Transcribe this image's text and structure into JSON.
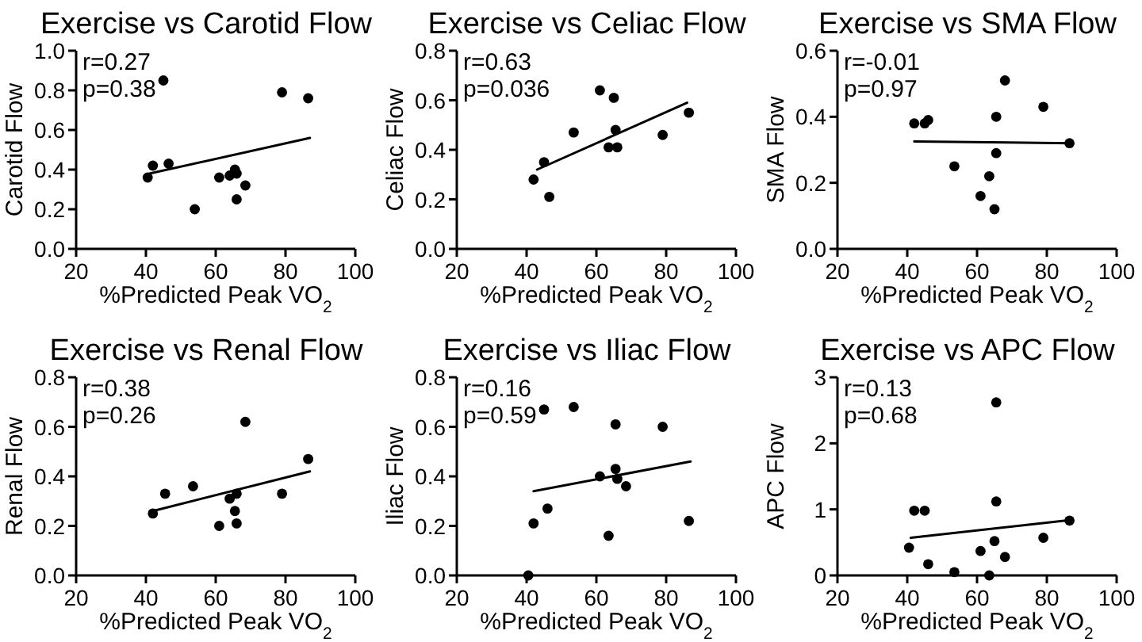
{
  "chart_data": [
    {
      "type": "scatter",
      "title": "Exercise vs Carotid Flow",
      "xlabel": "%Predicted Peak VO$_{2}$",
      "ylabel": "Carotid Flow",
      "annotations": [
        "r=0.27",
        "p=0.38"
      ],
      "marker": "circle",
      "xlim": [
        20,
        100
      ],
      "xticks": [
        20,
        40,
        60,
        80,
        100
      ],
      "ylim": [
        0,
        1
      ],
      "yticks": [
        {
          "value": 0,
          "label": "0.0"
        },
        {
          "value": 0.2,
          "label": "0.2"
        },
        {
          "value": 0.4,
          "label": "0.4"
        },
        {
          "value": 0.6,
          "label": "0.6"
        },
        {
          "value": 0.8,
          "label": "0.8"
        },
        {
          "value": 1,
          "label": "1.0"
        }
      ],
      "series": [
        {
          "color": "#000000",
          "x": [
            40.5,
            42,
            45,
            46.5,
            54,
            61,
            64,
            65.5,
            66,
            66,
            68.5,
            79,
            86.5
          ],
          "values": [
            0.36,
            0.42,
            0.85,
            0.43,
            0.2,
            0.36,
            0.37,
            0.4,
            0.38,
            0.25,
            0.32,
            0.79,
            0.76
          ]
        },
        {
          "type": "line",
          "marker": "none",
          "color": "#000000",
          "x": [
            41,
            87
          ],
          "values": [
            0.38,
            0.56
          ]
        }
      ]
    },
    {
      "type": "scatter",
      "title": "Exercise vs Celiac Flow",
      "xlabel": "%Predicted Peak VO$_{2}$",
      "ylabel": "Celiac Flow",
      "annotations": [
        "r=0.63",
        "p=0.036"
      ],
      "marker": "circle",
      "xlim": [
        20,
        100
      ],
      "xticks": [
        20,
        40,
        60,
        80,
        100
      ],
      "ylim": [
        0,
        0.8
      ],
      "yticks": [
        {
          "value": 0,
          "label": "0.0"
        },
        {
          "value": 0.2,
          "label": "0.2"
        },
        {
          "value": 0.4,
          "label": "0.4"
        },
        {
          "value": 0.6,
          "label": "0.6"
        },
        {
          "value": 0.8,
          "label": "0.8"
        }
      ],
      "series": [
        {
          "color": "#000000",
          "x": [
            42,
            45,
            46.5,
            53.5,
            61,
            63.5,
            65,
            65.5,
            66,
            79,
            86.5
          ],
          "values": [
            0.28,
            0.35,
            0.21,
            0.47,
            0.64,
            0.41,
            0.61,
            0.48,
            0.41,
            0.46,
            0.55
          ]
        },
        {
          "type": "line",
          "marker": "none",
          "color": "#000000",
          "x": [
            43,
            86
          ],
          "values": [
            0.32,
            0.59
          ]
        }
      ]
    },
    {
      "type": "scatter",
      "title": "Exercise vs SMA Flow",
      "xlabel": "%Predicted Peak VO$_{2}$",
      "ylabel": "SMA Flow",
      "annotations": [
        "r=-0.01",
        "p=0.97"
      ],
      "marker": "circle",
      "xlim": [
        20,
        100
      ],
      "xticks": [
        20,
        40,
        60,
        80,
        100
      ],
      "ylim": [
        0,
        0.6
      ],
      "yticks": [
        {
          "value": 0,
          "label": "0.0"
        },
        {
          "value": 0.2,
          "label": "0.2"
        },
        {
          "value": 0.4,
          "label": "0.4"
        },
        {
          "value": 0.6,
          "label": "0.6"
        }
      ],
      "series": [
        {
          "color": "#000000",
          "x": [
            42,
            45,
            46,
            53.5,
            61,
            63.5,
            65,
            65.5,
            65.5,
            68,
            79,
            86.5
          ],
          "values": [
            0.38,
            0.38,
            0.39,
            0.25,
            0.16,
            0.22,
            0.12,
            0.29,
            0.4,
            0.51,
            0.43,
            0.32
          ]
        },
        {
          "type": "line",
          "marker": "none",
          "color": "#000000",
          "x": [
            42,
            87
          ],
          "values": [
            0.325,
            0.32
          ]
        }
      ]
    },
    {
      "type": "scatter",
      "title": "Exercise vs Renal Flow",
      "xlabel": "%Predicted Peak VO$_{2}$",
      "ylabel": "Renal Flow",
      "annotations": [
        "r=0.38",
        "p=0.26"
      ],
      "marker": "circle",
      "xlim": [
        20,
        100
      ],
      "xticks": [
        20,
        40,
        60,
        80,
        100
      ],
      "ylim": [
        0,
        0.8
      ],
      "yticks": [
        {
          "value": 0,
          "label": "0.0"
        },
        {
          "value": 0.2,
          "label": "0.2"
        },
        {
          "value": 0.4,
          "label": "0.4"
        },
        {
          "value": 0.6,
          "label": "0.6"
        },
        {
          "value": 0.8,
          "label": "0.8"
        }
      ],
      "series": [
        {
          "color": "#000000",
          "x": [
            42,
            45.5,
            53.5,
            61,
            64,
            65.5,
            66,
            66,
            68.5,
            79,
            86.5
          ],
          "values": [
            0.25,
            0.33,
            0.36,
            0.2,
            0.31,
            0.26,
            0.21,
            0.33,
            0.62,
            0.33,
            0.47
          ]
        },
        {
          "type": "line",
          "marker": "none",
          "color": "#000000",
          "x": [
            42,
            87
          ],
          "values": [
            0.26,
            0.42
          ]
        }
      ]
    },
    {
      "type": "scatter",
      "title": "Exercise vs Iliac Flow",
      "xlabel": "%Predicted Peak VO$_{2}$",
      "ylabel": "Iliac Flow",
      "annotations": [
        "r=0.16",
        "p=0.59"
      ],
      "marker": "circle",
      "xlim": [
        20,
        100
      ],
      "xticks": [
        20,
        40,
        60,
        80,
        100
      ],
      "ylim": [
        0,
        0.8
      ],
      "yticks": [
        {
          "value": 0,
          "label": "0.0"
        },
        {
          "value": 0.2,
          "label": "0.2"
        },
        {
          "value": 0.4,
          "label": "0.4"
        },
        {
          "value": 0.6,
          "label": "0.6"
        },
        {
          "value": 0.8,
          "label": "0.8"
        }
      ],
      "series": [
        {
          "color": "#000000",
          "x": [
            40.5,
            42,
            45,
            46,
            53.5,
            61,
            63.5,
            65.5,
            65.5,
            66,
            68.5,
            79,
            86.5
          ],
          "values": [
            0,
            0.21,
            0.67,
            0.27,
            0.68,
            0.4,
            0.16,
            0.61,
            0.43,
            0.39,
            0.36,
            0.6,
            0.22
          ]
        },
        {
          "type": "line",
          "marker": "none",
          "color": "#000000",
          "x": [
            42,
            87
          ],
          "values": [
            0.34,
            0.46
          ]
        }
      ]
    },
    {
      "type": "scatter",
      "title": "Exercise vs APC Flow",
      "xlabel": "%Predicted Peak VO$_{2}$",
      "ylabel": "APC Flow",
      "annotations": [
        "r=0.13",
        "p=0.68"
      ],
      "marker": "circle",
      "xlim": [
        20,
        100
      ],
      "xticks": [
        20,
        40,
        60,
        80,
        100
      ],
      "ylim": [
        0,
        3
      ],
      "yticks": [
        0,
        1,
        2,
        3
      ],
      "series": [
        {
          "color": "#000000",
          "x": [
            40.5,
            42,
            45,
            46,
            53.5,
            61,
            63.5,
            65,
            65.5,
            65.5,
            68,
            79,
            86.5
          ],
          "values": [
            0.42,
            0.98,
            0.98,
            0.17,
            0.05,
            0.37,
            0,
            0.52,
            2.62,
            1.12,
            0.28,
            0.57,
            0.83
          ]
        },
        {
          "type": "line",
          "marker": "none",
          "color": "#000000",
          "x": [
            41,
            87
          ],
          "values": [
            0.57,
            0.84
          ]
        }
      ]
    }
  ]
}
